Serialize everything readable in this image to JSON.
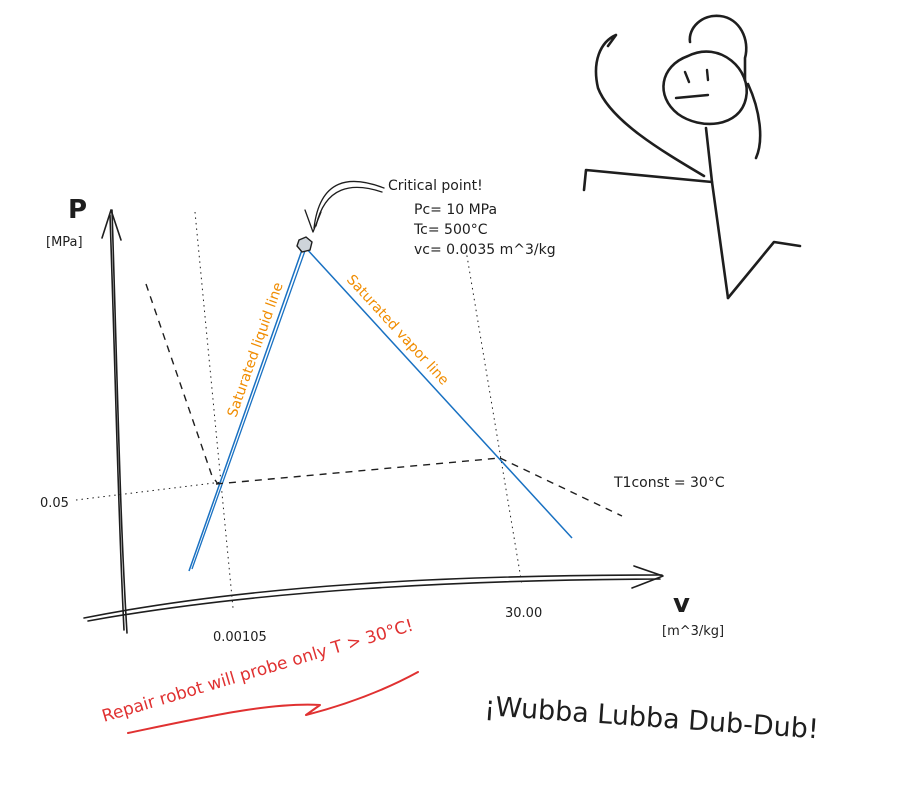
{
  "axes": {
    "y_symbol": "P",
    "y_unit": "[MPa]",
    "x_symbol": "v",
    "x_unit": "[m^3/kg]",
    "y_tick": "0.05",
    "x_tick_left": "0.00105",
    "x_tick_right": "30.00"
  },
  "critical_point": {
    "title": "Critical point!",
    "pressure": "Pc= 10 MPa",
    "temperature": "Tc= 500°C",
    "volume": "vc= 0.0035 m^3/kg"
  },
  "lines": {
    "liquid_label": "Saturated liquid line",
    "vapor_label": "Saturated vapor line",
    "isotherm_label": "T1const = 30°C"
  },
  "notes": {
    "robot": "Repair robot will probe only T > 30°C!",
    "catchphrase": "¡Wubba Lubba Dub-Dub!"
  },
  "colors": {
    "blue": "#1971c2",
    "orange": "#f08c00",
    "red": "#e03131",
    "ink": "#1e1e1e"
  }
}
